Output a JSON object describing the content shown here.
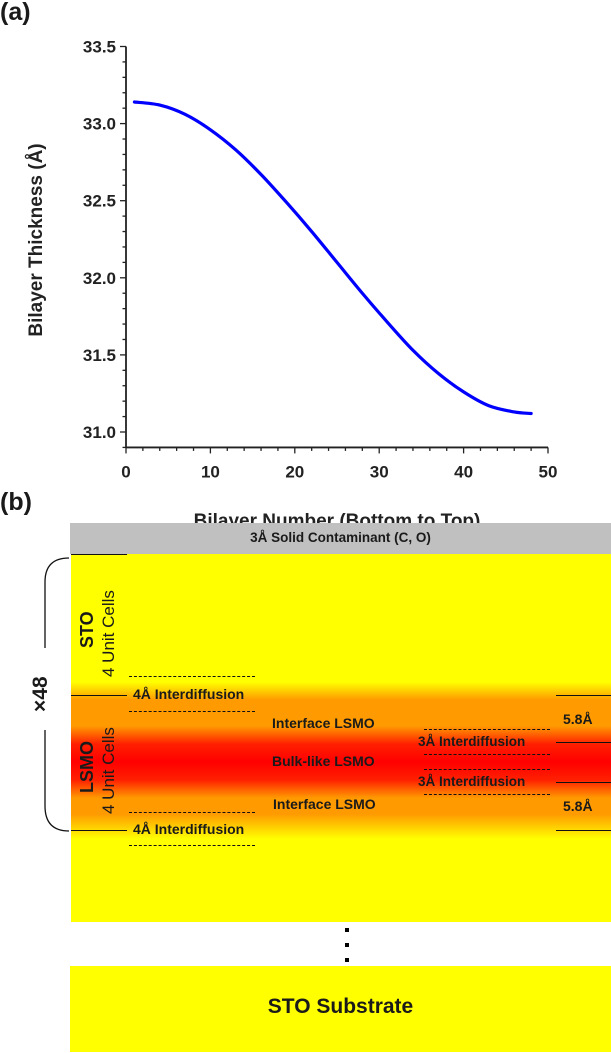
{
  "panel_a": {
    "label": "(a)"
  },
  "panel_b": {
    "label": "(b)"
  },
  "chart_data": {
    "type": "line",
    "title": "",
    "xlabel": "Bilayer Number (Bottom to Top)",
    "ylabel": "Bilayer Thickness (Å)",
    "xlim": [
      0,
      50
    ],
    "ylim": [
      30.9,
      33.5
    ],
    "xticks": [
      "0",
      "10",
      "20",
      "30",
      "40",
      "50"
    ],
    "yticks": [
      "31.0",
      "31.5",
      "32.0",
      "32.5",
      "33.0",
      "33.5"
    ],
    "grid": false,
    "series": [
      {
        "name": "Bilayer thickness",
        "color": "#0000ff",
        "x": [
          1,
          4,
          7,
          10,
          13,
          16,
          19,
          22,
          25,
          28,
          31,
          34,
          37,
          40,
          43,
          46,
          48
        ],
        "y": [
          33.14,
          33.12,
          33.06,
          32.96,
          32.83,
          32.67,
          32.49,
          32.3,
          32.1,
          31.9,
          31.71,
          31.53,
          31.38,
          31.26,
          31.17,
          31.13,
          31.12
        ]
      }
    ]
  },
  "diagram": {
    "contaminant": "3Å  Solid Contaminant  (C, O)",
    "repeat": "×48",
    "sto_label": "STO",
    "sto_cells": "4 Unit Cells",
    "lsmo_label": "LSMO",
    "lsmo_cells": "4 Unit Cells",
    "interdiffusion_top": "4Å Interdiffusion",
    "interdiffusion_bottom": "4Å Interdiffusion",
    "interface_top": "Interface LSMO",
    "bulk": "Bulk-like LSMO",
    "interface_bottom": "Interface LSMO",
    "inner_interdiffusion_top": "3Å Interdiffusion",
    "inner_interdiffusion_bottom": "3Å Interdiffusion",
    "thickness_top": "5.8Å",
    "thickness_bottom": "5.8Å",
    "ellipsis": "⋮",
    "substrate": "STO Substrate",
    "colors": {
      "sto": "#ffff00",
      "interface": "#ff9a00",
      "bulk": "#ff0000",
      "contaminant": "#c0c0c0"
    }
  }
}
